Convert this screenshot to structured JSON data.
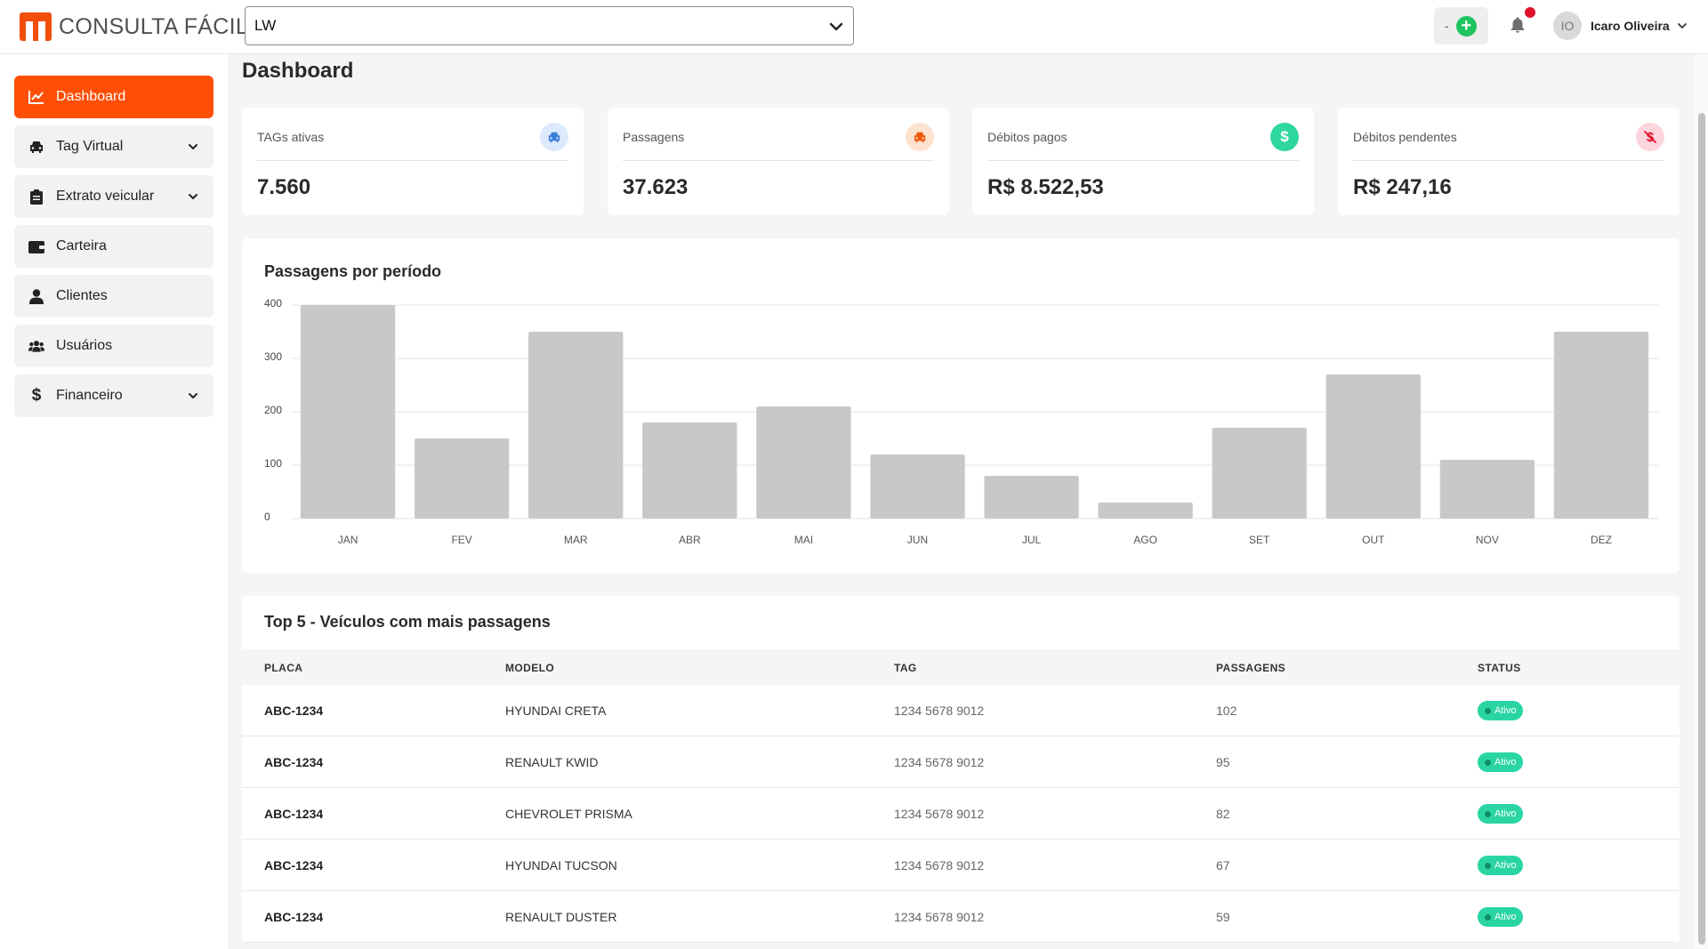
{
  "header": {
    "logo_text": "CONSULTA FÁCIL",
    "company_select_value": "LW",
    "balance_text": "-",
    "user_initials": "IO",
    "user_name": "Icaro Oliveira"
  },
  "sidebar": {
    "items": [
      {
        "label": "Dashboard",
        "icon": "chart-line-icon",
        "active": true,
        "has_submenu": false
      },
      {
        "label": "Tag Virtual",
        "icon": "car-icon",
        "active": false,
        "has_submenu": true
      },
      {
        "label": "Extrato veicular",
        "icon": "clipboard-icon",
        "active": false,
        "has_submenu": true
      },
      {
        "label": "Carteira",
        "icon": "wallet-icon",
        "active": false,
        "has_submenu": false
      },
      {
        "label": "Clientes",
        "icon": "user-icon",
        "active": false,
        "has_submenu": false
      },
      {
        "label": "Usuários",
        "icon": "users-icon",
        "active": false,
        "has_submenu": false
      },
      {
        "label": "Financeiro",
        "icon": "dollar-icon",
        "active": false,
        "has_submenu": true
      }
    ]
  },
  "page": {
    "title": "Dashboard"
  },
  "cards": [
    {
      "label": "TAGs ativas",
      "value": "7.560",
      "icon": "car-icon",
      "icon_color": "#3b7fd9",
      "icon_bg": "#dbeafc"
    },
    {
      "label": "Passagens",
      "value": "37.623",
      "icon": "car-icon",
      "icon_color": "#f05a0a",
      "icon_bg": "#fde2cf"
    },
    {
      "label": "Débitos pagos",
      "value": "R$ 8.522,53",
      "icon": "dollar-icon",
      "icon_color": "#ffffff",
      "icon_bg": "#2ed6a0"
    },
    {
      "label": "Débitos pendentes",
      "value": "R$ 247,16",
      "icon": "dollar-slash-icon",
      "icon_color": "#e0112b",
      "icon_bg": "#fdd5dd"
    }
  ],
  "chart_data": {
    "type": "bar",
    "title": "Passagens por período",
    "categories": [
      "JAN",
      "FEV",
      "MAR",
      "ABR",
      "MAI",
      "JUN",
      "JUL",
      "AGO",
      "SET",
      "OUT",
      "NOV",
      "DEZ"
    ],
    "values": [
      400,
      150,
      350,
      180,
      210,
      120,
      80,
      30,
      170,
      270,
      110,
      350
    ],
    "yticks": [
      0,
      100,
      200,
      300,
      400
    ],
    "ylim": [
      0,
      400
    ],
    "xlabel": "",
    "ylabel": "",
    "grid": true,
    "bar_color": "#c8c8c8"
  },
  "top_vehicles": {
    "title": "Top 5 - Veículos com mais passagens",
    "columns": [
      "PLACA",
      "MODELO",
      "TAG",
      "PASSAGENS",
      "STATUS"
    ],
    "rows": [
      {
        "plate": "ABC-1234",
        "model": "HYUNDAI CRETA",
        "tag": "1234 5678 9012",
        "passages": "102",
        "status": "Ativo"
      },
      {
        "plate": "ABC-1234",
        "model": "RENAULT KWID",
        "tag": "1234 5678 9012",
        "passages": "95",
        "status": "Ativo"
      },
      {
        "plate": "ABC-1234",
        "model": "CHEVROLET PRISMA",
        "tag": "1234 5678 9012",
        "passages": "82",
        "status": "Ativo"
      },
      {
        "plate": "ABC-1234",
        "model": "HYUNDAI TUCSON",
        "tag": "1234 5678 9012",
        "passages": "67",
        "status": "Ativo"
      },
      {
        "plate": "ABC-1234",
        "model": "RENAULT DUSTER",
        "tag": "1234 5678 9012",
        "passages": "59",
        "status": "Ativo"
      }
    ]
  },
  "colors": {
    "accent": "#ff4f07",
    "status_active": "#2ad5a4"
  }
}
